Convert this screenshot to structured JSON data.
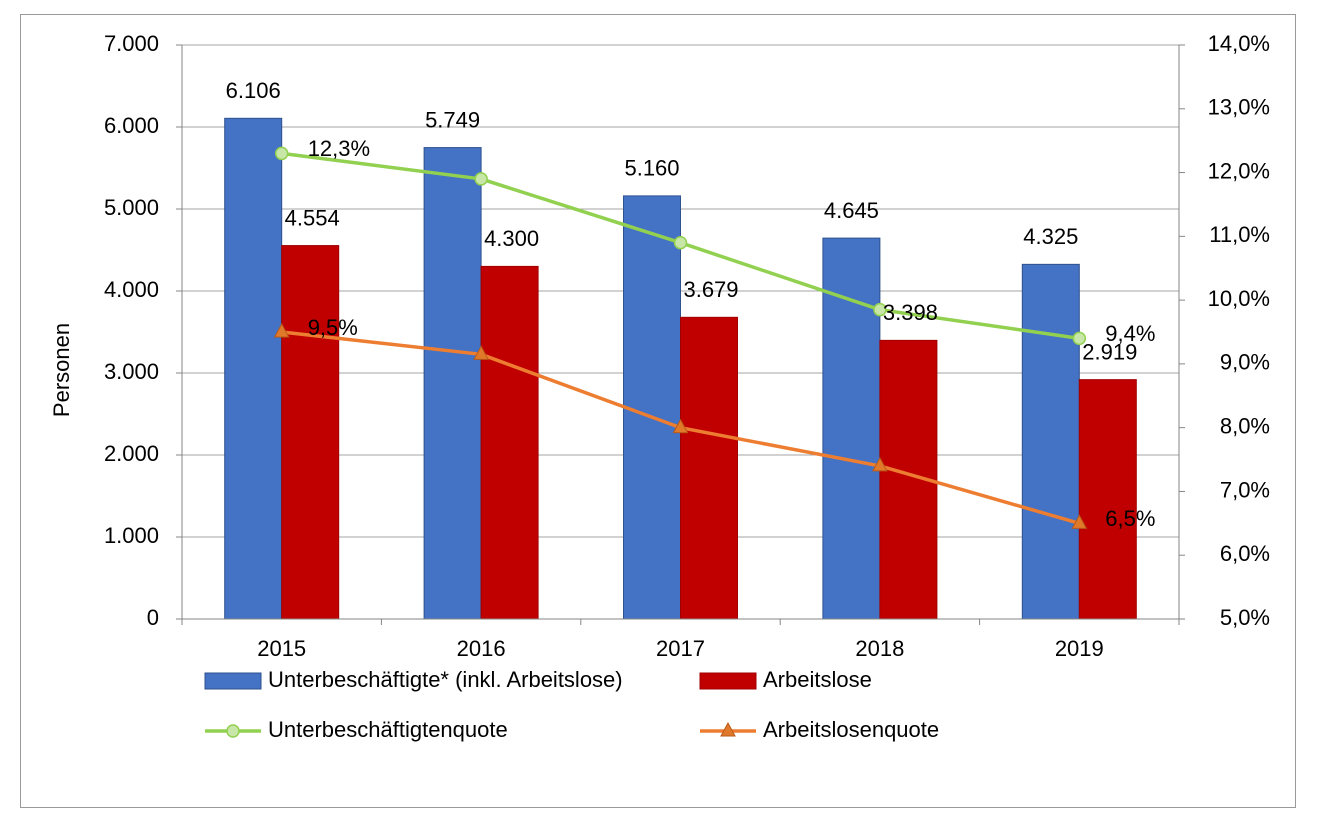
{
  "chart_data": {
    "type": "bar",
    "categories": [
      "2015",
      "2016",
      "2017",
      "2018",
      "2019"
    ],
    "ylabel": "Personen",
    "ylim": [
      0,
      7000
    ],
    "y_ticks": [
      "0",
      "1.000",
      "2.000",
      "3.000",
      "4.000",
      "5.000",
      "6.000",
      "7.000"
    ],
    "y2lim": [
      5.0,
      14.0
    ],
    "y2_ticks": [
      "5,0%",
      "6,0%",
      "7,0%",
      "8,0%",
      "9,0%",
      "10,0%",
      "11,0%",
      "12,0%",
      "13,0%",
      "14,0%"
    ],
    "grid": true,
    "legend_position": "bottom",
    "series": [
      {
        "name": "Unterbeschäftigte* (inkl. Arbeitslose)",
        "type": "bar",
        "axis": "left",
        "color": "#4472C4",
        "values": [
          6106,
          5749,
          5160,
          4645,
          4325
        ],
        "labels": [
          "6.106",
          "5.749",
          "5.160",
          "4.645",
          "4.325"
        ]
      },
      {
        "name": "Arbeitslose",
        "type": "bar",
        "axis": "left",
        "color": "#C00000",
        "values": [
          4554,
          4300,
          3679,
          3398,
          2919
        ],
        "labels": [
          "4.554",
          "4.300",
          "3.679",
          "3.398",
          "2.919"
        ]
      },
      {
        "name": "Unterbeschäftigtenquote",
        "type": "line",
        "axis": "right",
        "color": "#92D050",
        "marker": "circle",
        "values": [
          12.3,
          11.9,
          10.9,
          9.85,
          9.4
        ],
        "labels": [
          "12,3%",
          "",
          "",
          "",
          "9,4%"
        ]
      },
      {
        "name": "Arbeitslosenquote",
        "type": "line",
        "axis": "right",
        "color": "#ED7D31",
        "marker": "triangle",
        "values": [
          9.5,
          9.15,
          8.0,
          7.4,
          6.5
        ],
        "labels": [
          "9,5%",
          "",
          "",
          "",
          "6,5%"
        ]
      }
    ]
  }
}
